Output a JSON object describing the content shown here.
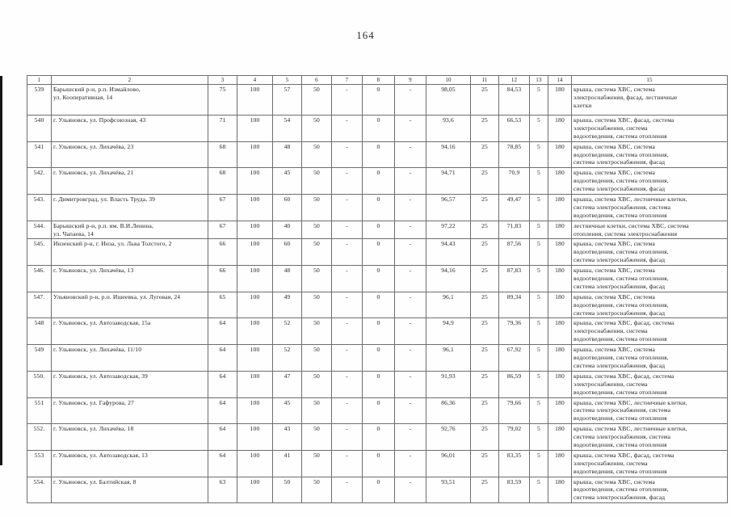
{
  "page": {
    "number": "164"
  },
  "colors": {
    "ink": "#242424",
    "table_border": "#6e6e6e",
    "scan_edge": "#161616"
  },
  "table": {
    "column_numbers": [
      "1",
      "2",
      "3",
      "4",
      "5",
      "6",
      "7",
      "8",
      "9",
      "10",
      "11",
      "12",
      "13",
      "14",
      "15"
    ],
    "rows": [
      {
        "num": "539",
        "address": "Барышский р-н, р.п. Измайлово,\nул. Кооперативная, 14",
        "values": [
          "75",
          "100",
          "57",
          "50",
          "-",
          "0",
          "-",
          "98,05",
          "25",
          "84,53",
          "5",
          "180"
        ],
        "works": "крыша, система ХВС, система\nэлектроснабжения, фасад, лестничные\nклетки"
      },
      {
        "num": "540",
        "address": "г. Ульяновск, ул. Профсоюзная, 43",
        "values": [
          "71",
          "100",
          "54",
          "50",
          "-",
          "0",
          "-",
          "93,6",
          "25",
          "66,53",
          "5",
          "180"
        ],
        "works": "крыша, система ХВС, фасад, система\nэлектроснабжения, система\nводоотведения, система отопления"
      },
      {
        "num": "541",
        "address": "г. Ульяновск, ул. Лихачёва, 23",
        "values": [
          "68",
          "100",
          "48",
          "50",
          "-",
          "0",
          "-",
          "94,16",
          "25",
          "78,85",
          "5",
          "180"
        ],
        "works": "крыша, система ХВС, система\nводоотведения, система отопления,\nсистема электроснабжения, фасад"
      },
      {
        "num": "542.",
        "address": "г. Ульяновск, ул. Лихачёва, 21",
        "values": [
          "68",
          "100",
          "45",
          "50",
          "-",
          "0",
          "-",
          "94,71",
          "25",
          "70,9",
          "5",
          "180"
        ],
        "works": "крыша, система ХВС, система\nводоотведения, система отопления,\nсистема электроснабжения, фасад"
      },
      {
        "num": "543.",
        "address": "г. Димитровград, ул. Власть Труда, 39",
        "values": [
          "67",
          "100",
          "60",
          "50",
          "-",
          "0",
          "-",
          "96,57",
          "25",
          "49,47",
          "5",
          "180"
        ],
        "works": "крыша, система ХВС, лестничные клетки,\nсистема электроснабжения, система\nводоотведения, система отопления"
      },
      {
        "num": "544.",
        "address": "Барышский р-н, р.п. им. В.И.Ленина,\nул. Чапаева, 14",
        "values": [
          "67",
          "100",
          "40",
          "50",
          "-",
          "0",
          "-",
          "97,22",
          "25",
          "71,83",
          "5",
          "180"
        ],
        "works": "лестничные клетки, система ХВС, система\nотопления, система электроснабжения"
      },
      {
        "num": "545.",
        "address": "Инзенский р-н, г. Инза, ул. Льва Толстого, 2",
        "values": [
          "66",
          "100",
          "60",
          "50",
          "-",
          "0",
          "-",
          "94,43",
          "25",
          "87,56",
          "5",
          "180"
        ],
        "works": "крыша, система ХВС, система\nводоотведения, система отопления,\nсистема электроснабжения, фасад"
      },
      {
        "num": "546.",
        "address": "г. Ульяновск, ул. Лихачёва, 13",
        "values": [
          "66",
          "100",
          "48",
          "50",
          "-",
          "0",
          "-",
          "94,16",
          "25",
          "87,83",
          "5",
          "180"
        ],
        "works": "крыша, система ХВС, система\nводоотведения, система отопления,\nсистема электроснабжения, фасад"
      },
      {
        "num": "547.",
        "address": "Ульяновский р-н, р.п. Ишеевка, ул. Луговая, 24",
        "values": [
          "65",
          "100",
          "49",
          "50",
          "-",
          "0",
          "-",
          "96,1",
          "25",
          "89,34",
          "5",
          "180"
        ],
        "works": "крыша, система ХВС, система\nводоотведения, система отопления,\nсистема электроснабжения, фасад"
      },
      {
        "num": "548",
        "address": "г. Ульяновск, ул. Автозаводская, 15а",
        "values": [
          "64",
          "100",
          "52",
          "50",
          "-",
          "0",
          "-",
          "94,9",
          "25",
          "79,36",
          "5",
          "180"
        ],
        "works": "крыша, система ХВС, фасад, система\nэлектроснабжения, система\nводоотведения, система отопления"
      },
      {
        "num": "549",
        "address": "г. Ульяновск, ул. Лихачёва, 11/10",
        "values": [
          "64",
          "100",
          "52",
          "50",
          "-",
          "0",
          "-",
          "96,1",
          "25",
          "67,92",
          "5",
          "180"
        ],
        "works": "крыша, система ХВС, система\nводоотведения, система отопления,\nсистема электроснабжения, фасад"
      },
      {
        "num": "550.",
        "address": "г. Ульяновск, ул. Автозаводская, 39",
        "values": [
          "64",
          "100",
          "47",
          "50",
          "-",
          "0",
          "-",
          "91,93",
          "25",
          "86,59",
          "5",
          "180"
        ],
        "works": "крыша, система ХВС, фасад, система\nэлектроснабжения, система\nводоотведения, система отопления"
      },
      {
        "num": "551",
        "address": "г. Ульяновск, ул. Гафурова, 27",
        "values": [
          "64",
          "100",
          "45",
          "50",
          "-",
          "0",
          "-",
          "86,36",
          "25",
          "79,66",
          "5",
          "180"
        ],
        "works": "крыша, система ХВС, лестничные клетки,\nсистема электроснабжения, система\nводоотведения, система отопления"
      },
      {
        "num": "552.",
        "address": "г. Ульяновск, ул. Лихачёва, 18",
        "values": [
          "64",
          "100",
          "43",
          "50",
          "-",
          "0",
          "-",
          "92,76",
          "25",
          "79,02",
          "5",
          "180"
        ],
        "works": "крыша, система ХВС, лестничные клетки,\nсистема электроснабжения, система\nводоотведения, система отопления"
      },
      {
        "num": "553",
        "address": "г. Ульяновск, ул. Автозаводская, 13",
        "values": [
          "64",
          "100",
          "41",
          "50",
          "-",
          "0",
          "-",
          "96,01",
          "25",
          "83,35",
          "5",
          "180"
        ],
        "works": "крыша, система ХВС, фасад, система\nэлектроснабжения, система\nводоотведения, система отопления"
      },
      {
        "num": "554.",
        "address": "г. Ульяновск, ул. Балтийская, 8",
        "values": [
          "63",
          "100",
          "50",
          "50",
          "-",
          "0",
          "-",
          "93,51",
          "25",
          "83,59",
          "5",
          "180"
        ],
        "works": "крыша, система ХВС, система\nводоотведения, система отопления,\nсистема электроснабжения, фасад"
      }
    ]
  }
}
